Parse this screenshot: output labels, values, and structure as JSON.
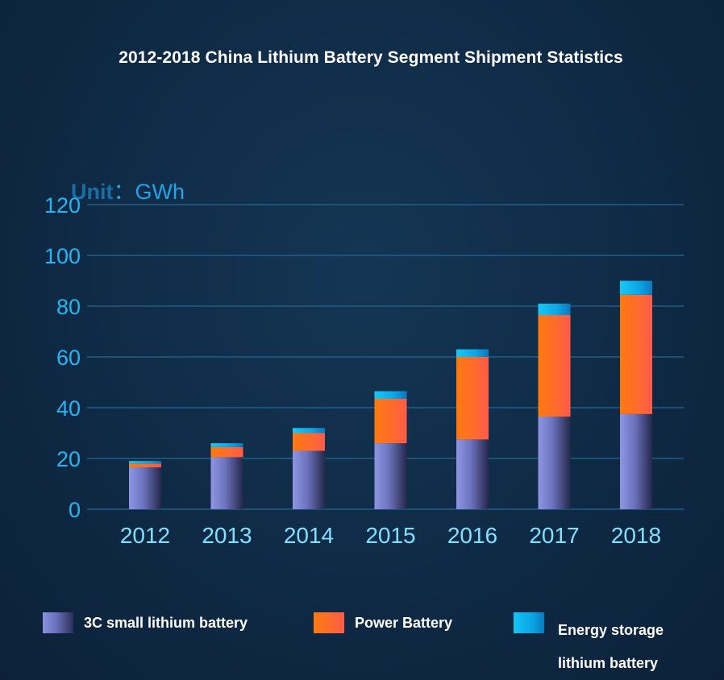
{
  "unit": {
    "word": "Unit",
    "value": "：GWh"
  },
  "chart_data": {
    "type": "bar",
    "stacked": true,
    "title": "2012-2018 China Lithium Battery Segment Shipment Statistics",
    "categories": [
      "2012",
      "2013",
      "2014",
      "2015",
      "2016",
      "2017",
      "2018"
    ],
    "series": [
      {
        "name": "3C small lithium battery",
        "color": "#7a82d0",
        "values": [
          16.5,
          20.5,
          23,
          26,
          27.5,
          36.5,
          37.5
        ]
      },
      {
        "name": "Power Battery",
        "color": "#ff6a25",
        "values": [
          1.5,
          4,
          7,
          17.5,
          32.5,
          40,
          47
        ]
      },
      {
        "name": "Energy storage lithium battery",
        "color": "#10b4ee",
        "values": [
          1,
          1.5,
          2,
          3,
          3,
          4.5,
          5.5
        ]
      }
    ],
    "ylim": [
      0,
      120
    ],
    "yticks": [
      "0",
      "20",
      "40",
      "60",
      "80",
      "100",
      "120"
    ],
    "grid": true,
    "legend_position": "bottom"
  }
}
